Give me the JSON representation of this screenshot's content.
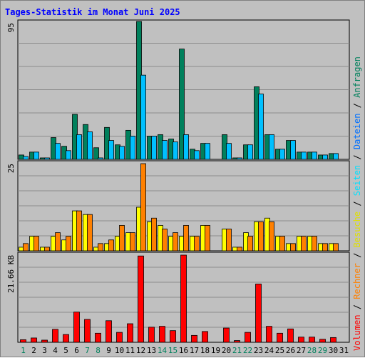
{
  "title": "Tages-Statistik im Monat Juni 2025",
  "colors": {
    "title": "#0000ff",
    "plot_bg": "#c0c0c0",
    "grid": "#8c8c8c",
    "anfragen": "#00805c",
    "dateien": "#00c0ff",
    "seiten": "#00e0ff",
    "besuche": "#ffff00",
    "rechner": "#ff8000",
    "volumen": "#ff0000",
    "weekday": "#000000",
    "weekend": "#00805c"
  },
  "right_legend": {
    "top": [
      "Anfragen",
      "Dateien",
      "Seiten",
      "Besuche"
    ],
    "bottom": [
      "Rechner",
      "Volumen"
    ],
    "separator": " / "
  },
  "chart_data": [
    {
      "type": "bar",
      "panel": "requests",
      "ymax_label": "95",
      "ylim": [
        0,
        95
      ],
      "categories": [
        "1",
        "2",
        "3",
        "4",
        "5",
        "6",
        "7",
        "8",
        "9",
        "10",
        "11",
        "12",
        "13",
        "14",
        "15",
        "16",
        "17",
        "18",
        "19",
        "20",
        "21",
        "22",
        "23",
        "24",
        "25",
        "26",
        "27",
        "28",
        "29",
        "30",
        "31"
      ],
      "weekend_days": [
        "1",
        "7",
        "8",
        "14",
        "15",
        "21",
        "22",
        "28",
        "29"
      ],
      "series": [
        {
          "name": "Anfragen",
          "values": [
            3,
            5,
            1,
            15,
            9,
            31,
            24,
            8,
            22,
            10,
            20,
            95,
            16,
            17,
            14,
            76,
            7,
            11,
            0,
            17,
            1,
            10,
            50,
            17,
            7,
            13,
            5,
            5,
            3,
            4,
            0
          ]
        },
        {
          "name": "Dateien",
          "values": [
            2,
            5,
            1,
            11,
            6,
            17,
            19,
            1,
            13,
            9,
            16,
            58,
            16,
            13,
            12,
            17,
            6,
            11,
            0,
            11,
            1,
            10,
            45,
            17,
            7,
            13,
            5,
            5,
            3,
            4,
            0
          ]
        }
      ]
    },
    {
      "type": "bar",
      "panel": "visits",
      "ymax_label": "25",
      "ylim": [
        0,
        25
      ],
      "categories": [
        "1",
        "2",
        "3",
        "4",
        "5",
        "6",
        "7",
        "8",
        "9",
        "10",
        "11",
        "12",
        "13",
        "14",
        "15",
        "16",
        "17",
        "18",
        "19",
        "20",
        "21",
        "22",
        "23",
        "24",
        "25",
        "26",
        "27",
        "28",
        "29",
        "30",
        "31"
      ],
      "series": [
        {
          "name": "Besuche",
          "values": [
            1,
            4,
            1,
            4,
            3,
            11,
            10,
            1,
            2,
            4,
            5,
            12,
            8,
            7,
            4,
            4,
            4,
            7,
            0,
            6,
            1,
            5,
            8,
            9,
            4,
            2,
            4,
            4,
            2,
            2,
            0
          ]
        },
        {
          "name": "Rechner",
          "values": [
            2,
            4,
            1,
            5,
            4,
            11,
            10,
            2,
            3,
            7,
            5,
            24,
            9,
            6,
            5,
            7,
            4,
            7,
            0,
            6,
            1,
            4,
            8,
            8,
            4,
            2,
            4,
            4,
            2,
            2,
            0
          ]
        }
      ]
    },
    {
      "type": "bar",
      "panel": "volume",
      "ymax_label": "21.66 KB",
      "ylim": [
        0,
        21.66
      ],
      "categories": [
        "1",
        "2",
        "3",
        "4",
        "5",
        "6",
        "7",
        "8",
        "9",
        "10",
        "11",
        "12",
        "13",
        "14",
        "15",
        "16",
        "17",
        "18",
        "19",
        "20",
        "21",
        "22",
        "23",
        "24",
        "25",
        "26",
        "27",
        "28",
        "29",
        "30",
        "31"
      ],
      "series": [
        {
          "name": "Volumen",
          "values": [
            0.6,
            1.0,
            0.5,
            3.0,
            1.8,
            7.0,
            5.3,
            2.1,
            5.0,
            2.3,
            4.3,
            20.0,
            3.5,
            3.7,
            2.7,
            20.2,
            1.6,
            2.5,
            0,
            3.3,
            0.4,
            2.3,
            13.5,
            3.7,
            2.1,
            3.1,
            1.2,
            1.2,
            0.7,
            1.1,
            0
          ]
        }
      ]
    }
  ]
}
